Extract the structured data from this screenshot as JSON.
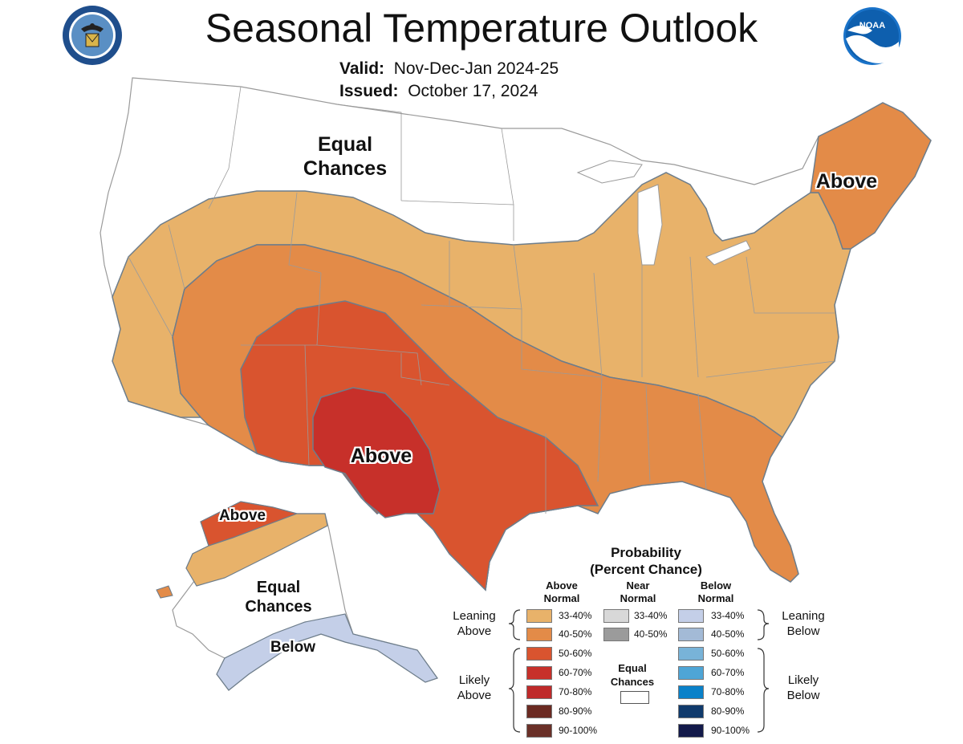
{
  "header": {
    "title": "Seasonal Temperature Outlook",
    "valid_label": "Valid:",
    "valid_value": "Nov-Dec-Jan 2024-25",
    "issued_label": "Issued:",
    "issued_value": "October 17, 2024"
  },
  "logos": {
    "left_seal": "department-of-commerce-seal",
    "right_logo_text": "NOAA"
  },
  "map_labels": {
    "conus_equal_chances": "Equal\nChances",
    "northeast_above": "Above",
    "southwest_above": "Above",
    "alaska_above": "Above",
    "alaska_equal_chances": "Equal\nChances",
    "alaska_below": "Below"
  },
  "map_colors": {
    "land": "#ffffff",
    "border": "#9a9a9a",
    "contour": "#6d7d8b",
    "above_33_40": "#e8b26a",
    "above_40_50": "#e38b48",
    "above_50_60": "#d9542f",
    "above_60_70": "#c7302a",
    "below_33_40": "#c4cfe8"
  },
  "legend": {
    "title": "Probability",
    "subtitle": "(Percent Chance)",
    "col_above": "Above\nNormal",
    "col_near": "Near\nNormal",
    "col_below": "Below\nNormal",
    "leaning_above": "Leaning\nAbove",
    "leaning_below": "Leaning\nBelow",
    "likely_above": "Likely\nAbove",
    "likely_below": "Likely\nBelow",
    "equal_chances": "Equal\nChances",
    "above": [
      {
        "label": "33-40%",
        "color": "#e8b26a"
      },
      {
        "label": "40-50%",
        "color": "#e38b48"
      },
      {
        "label": "50-60%",
        "color": "#d9542f"
      },
      {
        "label": "60-70%",
        "color": "#c7302a"
      },
      {
        "label": "70-80%",
        "color": "#bf2a2a"
      },
      {
        "label": "80-90%",
        "color": "#6b2a22"
      },
      {
        "label": "90-100%",
        "color": "#6a3028"
      }
    ],
    "near": [
      {
        "label": "33-40%",
        "color": "#d8d8d8"
      },
      {
        "label": "40-50%",
        "color": "#9b9b9b"
      }
    ],
    "below": [
      {
        "label": "33-40%",
        "color": "#c4cfe8"
      },
      {
        "label": "40-50%",
        "color": "#a3bad6"
      },
      {
        "label": "50-60%",
        "color": "#78b3d8"
      },
      {
        "label": "60-70%",
        "color": "#4ea5d6"
      },
      {
        "label": "70-80%",
        "color": "#0a81c9"
      },
      {
        "label": "80-90%",
        "color": "#103a6c"
      },
      {
        "label": "90-100%",
        "color": "#131a4a"
      }
    ]
  }
}
